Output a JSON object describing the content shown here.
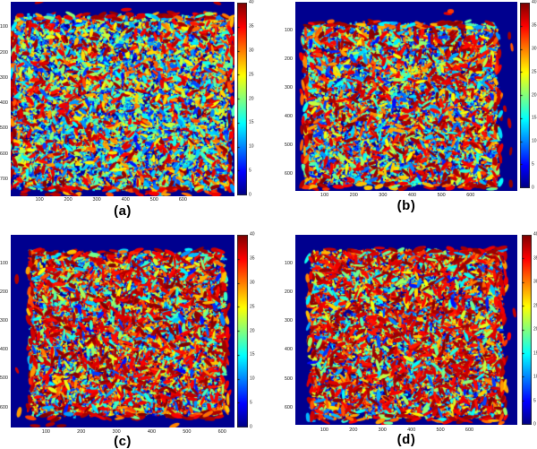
{
  "figure": {
    "page_background": "#ffffff",
    "plot_background_color": "#00008f",
    "colormap": "jet",
    "colorbar": {
      "min": 0,
      "max": 40,
      "ticks": [
        0,
        5,
        10,
        15,
        20,
        25,
        30,
        35,
        40
      ]
    }
  },
  "chart_data": [
    {
      "type": "heatmap",
      "title": "(a)",
      "xlabel": "",
      "ylabel": "",
      "x_ticks": [
        100,
        200,
        300,
        400,
        500,
        600
      ],
      "y_ticks": [
        100,
        200,
        300,
        400,
        500,
        600,
        700
      ],
      "xlim": [
        0,
        780
      ],
      "ylim": [
        0,
        768
      ],
      "colormap": "jet",
      "colorbar_range": [
        0,
        40
      ],
      "colorbar_ticks": [
        0,
        5,
        10,
        15,
        20,
        25,
        30,
        35,
        40
      ],
      "background_value": 0,
      "content_summary": "Densely packed elongated grain-like segments with mixed jet-colormap values (mostly 5-25, cyan/blue/green) on a zero-value dark blue background; grain region spans nearly the full image width with dark-red saturated grains along the top, bottom and side boundaries and a few stray grains above and below the packed region.",
      "texture": {
        "seed": 11,
        "red_fraction": 0.15,
        "value_range": [
          3,
          30
        ],
        "solid_red_share": 0.42,
        "grain_scale": 1.0,
        "strays": {
          "top": 3,
          "bottom": 12,
          "left": 2,
          "right": 2
        }
      }
    },
    {
      "type": "heatmap",
      "title": "(b)",
      "xlabel": "",
      "ylabel": "",
      "x_ticks": [
        100,
        200,
        300,
        400,
        500,
        600
      ],
      "y_ticks": [
        100,
        200,
        300,
        400,
        500,
        600
      ],
      "xlim": [
        0,
        760
      ],
      "ylim": [
        0,
        660
      ],
      "colormap": "jet",
      "colorbar_range": [
        0,
        40
      ],
      "colorbar_ticks": [
        0,
        5,
        10,
        15,
        20,
        25,
        30,
        35,
        40
      ],
      "background_value": 0,
      "content_summary": "Inset rectangular region of densely packed elongated grains (values 0-40, jet colors) surrounded by zero-value dark blue margin; saturated dark-red grains concentrated along the jagged outer boundary, especially the right edge.",
      "texture": {
        "seed": 22,
        "red_fraction": 0.2,
        "value_range": [
          3,
          32
        ],
        "solid_red_share": 0.52,
        "grain_scale": 1.15,
        "strays": {
          "top": 2,
          "bottom": 2,
          "right": 6
        }
      }
    },
    {
      "type": "heatmap",
      "title": "(c)",
      "xlabel": "",
      "ylabel": "",
      "x_ticks": [
        100,
        200,
        300,
        400,
        500,
        600
      ],
      "y_ticks": [
        100,
        200,
        300,
        400,
        500,
        600
      ],
      "xlim": [
        0,
        635
      ],
      "ylim": [
        0,
        670
      ],
      "colormap": "jet",
      "colorbar_range": [
        0,
        40
      ],
      "colorbar_ticks": [
        0,
        5,
        10,
        15,
        20,
        25,
        30,
        35,
        40
      ],
      "background_value": 0,
      "content_summary": "Inset region of densely packed elongated grains with a noticeably higher share of saturated dark-red (near 40) grains mixed with cyan/green/yellow segments on a zero-value dark blue background; dark-red grains fringe the irregular boundary.",
      "texture": {
        "seed": 33,
        "red_fraction": 0.28,
        "value_range": [
          4,
          34
        ],
        "solid_red_share": 0.68,
        "grain_scale": 1.2,
        "strays": {
          "bottom": 5,
          "left": 3
        }
      }
    },
    {
      "type": "heatmap",
      "title": "(d)",
      "xlabel": "",
      "ylabel": "",
      "x_ticks": [
        100,
        200,
        300,
        400,
        500,
        600
      ],
      "y_ticks": [
        100,
        200,
        300,
        400,
        500,
        600
      ],
      "xlim": [
        0,
        765
      ],
      "ylim": [
        0,
        660
      ],
      "colormap": "jet",
      "colorbar_range": [
        0,
        40
      ],
      "colorbar_ticks": [
        0,
        5,
        10,
        15,
        20,
        25,
        30,
        35,
        40
      ],
      "background_value": 0,
      "content_summary": "Inset region of densely packed elongated grains with heavy presence of saturated dark-red values interleaved with cyan/blue/green segments on a zero-value dark blue background; jagged boundary fringed by dark-red grains.",
      "texture": {
        "seed": 44,
        "red_fraction": 0.3,
        "value_range": [
          4,
          34
        ],
        "solid_red_share": 0.7,
        "grain_scale": 1.2,
        "strays": {
          "bottom": 3,
          "right": 2
        }
      }
    }
  ]
}
